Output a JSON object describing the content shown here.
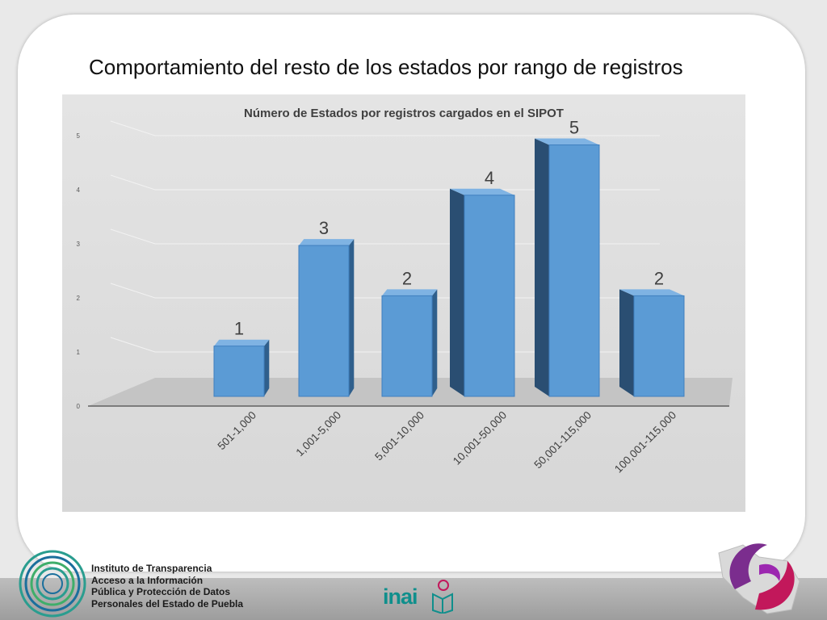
{
  "slide": {
    "title": "Comportamiento del resto de los estados por rango de registros"
  },
  "chart_data": {
    "type": "bar",
    "title": "Número de Estados por registros cargados en el SIPOT",
    "categories": [
      "501-1,000",
      "1,001-5,000",
      "5,001-10,000",
      "10,001-50,000",
      "50,001-115,000",
      "100,001-115,000"
    ],
    "values": [
      1,
      3,
      2,
      4,
      5,
      2
    ],
    "data_labels": [
      "1",
      "3",
      "2",
      "4",
      "5",
      "2"
    ],
    "ylim": [
      0,
      5
    ],
    "y_ticks": [
      "0",
      "1",
      "2",
      "3",
      "4",
      "5"
    ],
    "xlabel": "",
    "ylabel": "",
    "grid": true,
    "legend": "none",
    "bar_color": "#5b9bd5"
  },
  "footer": {
    "institution_lines": [
      "Instituto de Transparencia",
      "Acceso a la Información",
      "Pública y Protección de Datos",
      "Personales del Estado de Puebla"
    ],
    "inai_logo_text": "inai",
    "colors": {
      "inai": "#0f8f8c",
      "emblem_purple": "#7b2d8e",
      "emblem_magenta": "#c2185b"
    }
  }
}
